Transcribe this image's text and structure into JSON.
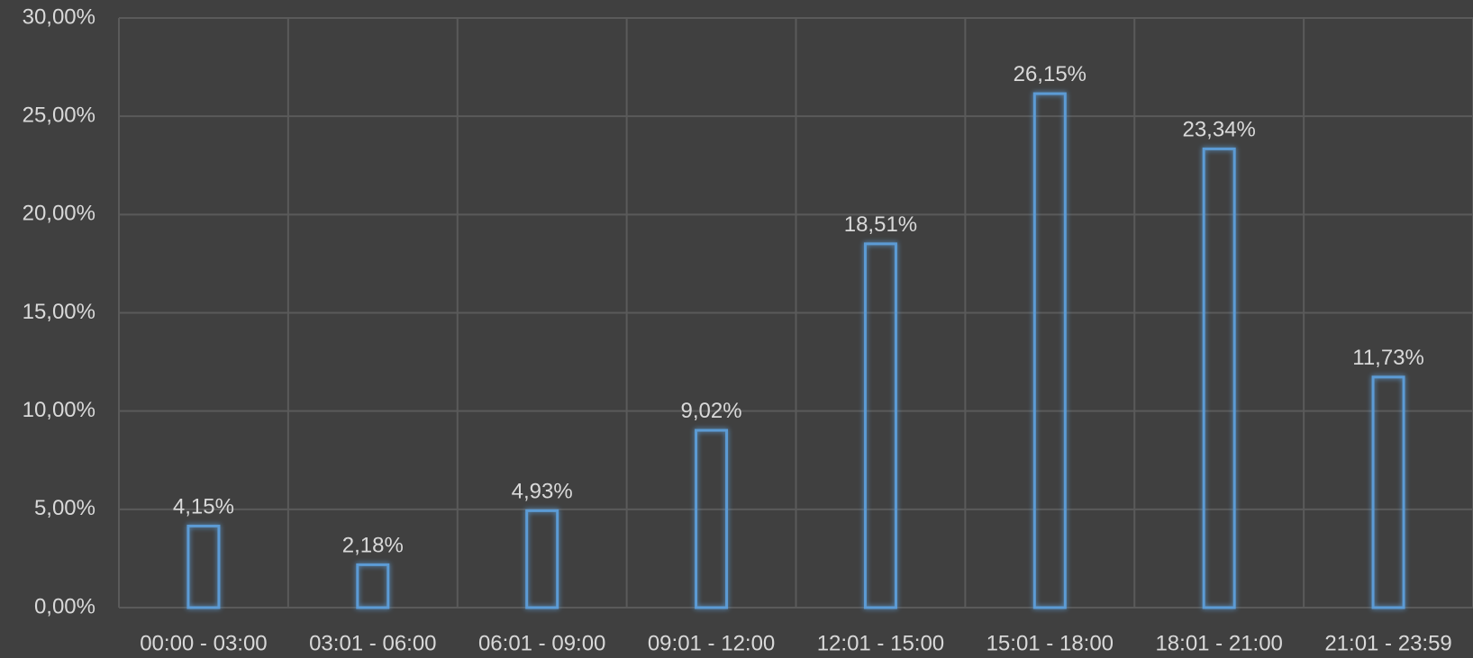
{
  "chart_data": {
    "type": "bar",
    "categories": [
      "00:00 - 03:00",
      "03:01 - 06:00",
      "06:01 - 09:00",
      "09:01 - 12:00",
      "12:01 - 15:00",
      "15:01 - 18:00",
      "18:01 - 21:00",
      "21:01 - 23:59"
    ],
    "values": [
      4.15,
      2.18,
      4.93,
      9.02,
      18.51,
      26.15,
      23.34,
      11.73
    ],
    "data_labels": [
      "4,15%",
      "2,18%",
      "4,93%",
      "9,02%",
      "18,51%",
      "26,15%",
      "23,34%",
      "11,73%"
    ],
    "y_ticks": [
      "0,00%",
      "5,00%",
      "10,00%",
      "15,00%",
      "20,00%",
      "25,00%",
      "30,00%"
    ],
    "y_tick_values": [
      0,
      5,
      10,
      15,
      20,
      25,
      30
    ],
    "title": "",
    "xlabel": "",
    "ylabel": "",
    "ylim": [
      0,
      30
    ],
    "grid": true,
    "legend": "none",
    "colors": {
      "background": "#404040",
      "gridline": "#5a5a5a",
      "text": "#d9d9d9",
      "bar_outline": "#5b9bd5"
    }
  }
}
